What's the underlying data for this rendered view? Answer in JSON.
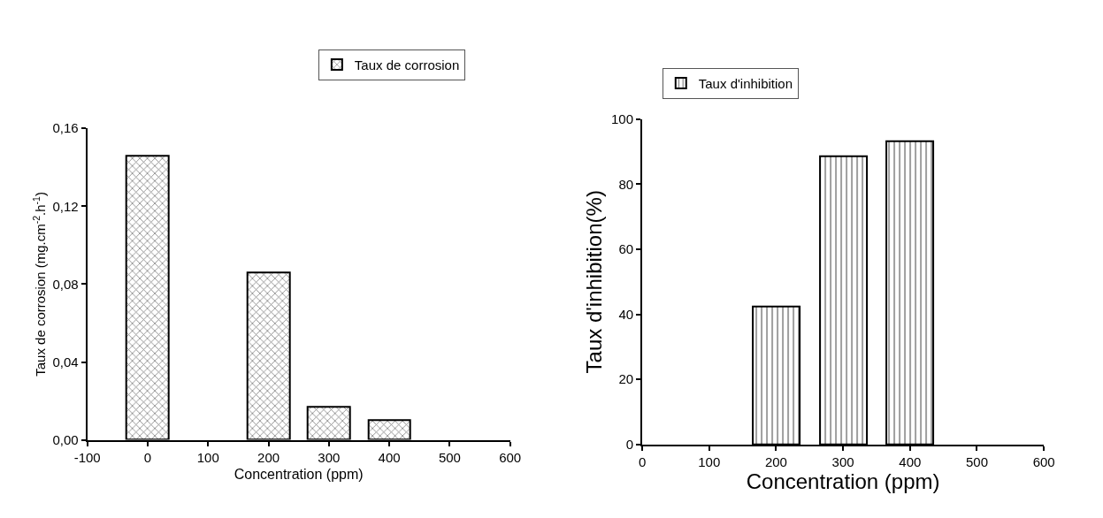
{
  "chart_data": [
    {
      "type": "bar",
      "x": [
        0,
        200,
        300,
        400
      ],
      "xlabel": "Concentration (ppm)",
      "ylabel": "Taux de corrosion (mg.cm$^{-2}$.h$^{-1}$)",
      "series": [
        {
          "name": "Taux de corrosion",
          "color": "#000000",
          "values": [
            0.146,
            0.086,
            0.017,
            0.01
          ]
        }
      ],
      "xlim": [
        -100,
        600
      ],
      "xticks": [
        -100,
        0,
        100,
        200,
        300,
        400,
        500,
        600
      ],
      "ylim": [
        0,
        0.16
      ],
      "yticks": [
        {
          "value": 0,
          "label": "0,00"
        },
        {
          "value": 0.04,
          "label": "0,04"
        },
        {
          "value": 0.08,
          "label": "0,08"
        },
        {
          "value": 0.12,
          "label": "0,12"
        },
        {
          "value": 0.16,
          "label": "0,16"
        }
      ],
      "legend": "top right"
    },
    {
      "type": "bar",
      "x": [
        200,
        300,
        400
      ],
      "xlabel": "Concentration (ppm)",
      "ylabel": "Taux d'inhibition(%)",
      "series": [
        {
          "name": "Taux d'inhibition",
          "color": "#000000",
          "values": [
            42.5,
            88.5,
            93.3
          ]
        }
      ],
      "xlim": [
        0,
        600
      ],
      "xticks": [
        0,
        100,
        200,
        300,
        400,
        500,
        600
      ],
      "ylim": [
        0,
        100
      ],
      "yticks": [
        0,
        20,
        40,
        60,
        80,
        100
      ],
      "legend": "top left"
    }
  ]
}
